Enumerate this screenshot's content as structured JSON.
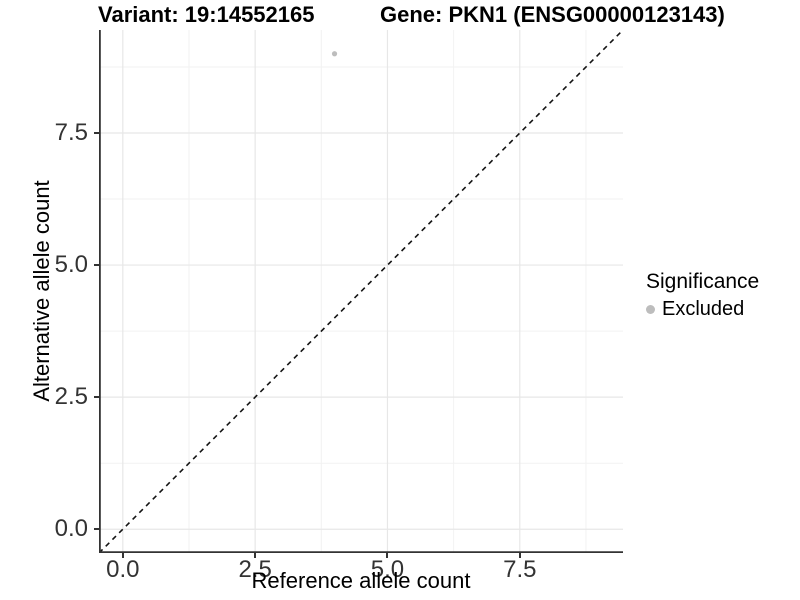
{
  "chart_data": {
    "type": "scatter",
    "titles": [
      "Variant: 19:14552165",
      "Gene: PKN1 (ENSG00000123143)"
    ],
    "xlabel": "Reference allele count",
    "ylabel": "Alternative allele count",
    "xlim": [
      -0.45,
      9.45
    ],
    "ylim": [
      -0.45,
      9.45
    ],
    "x_breaks": [
      0,
      2.5,
      5,
      7.5
    ],
    "x_tick_labels": [
      "0.0",
      "2.5",
      "5.0",
      "7.5"
    ],
    "x_minor_breaks": [
      1.25,
      3.75,
      6.25,
      8.75
    ],
    "y_breaks": [
      0,
      2.5,
      5,
      7.5
    ],
    "y_tick_labels": [
      "0.0",
      "2.5",
      "5.0",
      "7.5"
    ],
    "y_minor_breaks": [
      1.25,
      3.75,
      6.25,
      8.75
    ],
    "grid": "major+minor",
    "points": [
      {
        "x": 4,
        "y": 9,
        "significance": "Excluded"
      }
    ],
    "point_radius_px": 2.6,
    "reference_line": {
      "kind": "identity",
      "slope": 1,
      "intercept": 0,
      "style": "dashed"
    },
    "legend": {
      "title": "Significance",
      "position": "right",
      "items": [
        {
          "label": "Excluded",
          "color": "#bdbdbd"
        }
      ]
    }
  },
  "colors": {
    "background": "#ffffff",
    "point": "#bdbdbd",
    "grid_major": "#e7e7e7",
    "grid_minor": "#f2f2f2",
    "axis_line": "#333333",
    "tick_mark": "#333333",
    "tick_label": "#333333",
    "text": "#000000",
    "reference_line": "#141414",
    "legend_key": "#bdbdbd"
  }
}
